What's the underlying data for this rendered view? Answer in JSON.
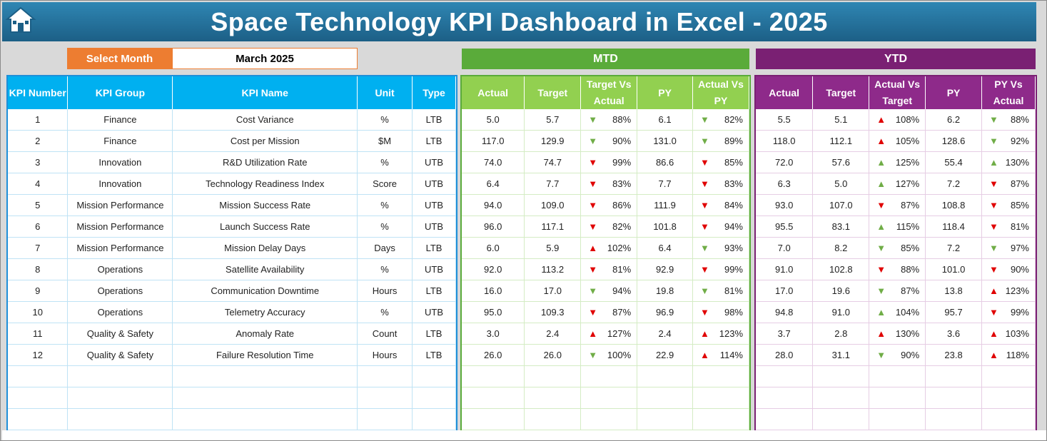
{
  "title": "Space Technology KPI Dashboard in Excel - 2025",
  "selector": {
    "label": "Select Month",
    "value": "March 2025"
  },
  "bands": {
    "mtd": "MTD",
    "ytd": "YTD"
  },
  "left_headers": [
    "KPI Number",
    "KPI Group",
    "KPI Name",
    "Unit",
    "Type"
  ],
  "mtd_headers": [
    "Actual",
    "Target",
    "Target Vs Actual",
    "PY",
    "Actual Vs PY"
  ],
  "ytd_headers": [
    "Actual",
    "Target",
    "Actual Vs Target",
    "PY",
    "PY Vs Actual"
  ],
  "colors": {
    "title_bg": "#1c5f86",
    "select_label": "#ed7d31",
    "mtd": "#92d050",
    "ytd": "#8e2a8a",
    "kpi_header": "#00b0f0",
    "arrow_red": "#e00000",
    "arrow_green": "#70ad47"
  },
  "rows": [
    {
      "num": "1",
      "group": "Finance",
      "name": "Cost Variance",
      "unit": "%",
      "type": "LTB",
      "mtd": {
        "actual": "5.0",
        "target": "5.7",
        "tva": "88%",
        "tva_dir": "down",
        "py": "6.1",
        "avp": "82%",
        "avp_dir": "down"
      },
      "ytd": {
        "actual": "5.5",
        "target": "5.1",
        "avt": "108%",
        "avt_dir": "up-red",
        "py": "6.2",
        "pva": "88%",
        "pva_dir": "down"
      }
    },
    {
      "num": "2",
      "group": "Finance",
      "name": "Cost per Mission",
      "unit": "$M",
      "type": "LTB",
      "mtd": {
        "actual": "117.0",
        "target": "129.9",
        "tva": "90%",
        "tva_dir": "down",
        "py": "131.0",
        "avp": "89%",
        "avp_dir": "down"
      },
      "ytd": {
        "actual": "118.0",
        "target": "112.1",
        "avt": "105%",
        "avt_dir": "up-red",
        "py": "128.6",
        "pva": "92%",
        "pva_dir": "down"
      }
    },
    {
      "num": "3",
      "group": "Innovation",
      "name": "R&D Utilization Rate",
      "unit": "%",
      "type": "UTB",
      "mtd": {
        "actual": "74.0",
        "target": "74.7",
        "tva": "99%",
        "tva_dir": "down-red",
        "py": "86.6",
        "avp": "85%",
        "avp_dir": "down-red"
      },
      "ytd": {
        "actual": "72.0",
        "target": "57.6",
        "avt": "125%",
        "avt_dir": "up-green",
        "py": "55.4",
        "pva": "130%",
        "pva_dir": "up-green"
      }
    },
    {
      "num": "4",
      "group": "Innovation",
      "name": "Technology Readiness Index",
      "unit": "Score",
      "type": "UTB",
      "mtd": {
        "actual": "6.4",
        "target": "7.7",
        "tva": "83%",
        "tva_dir": "down-red",
        "py": "7.7",
        "avp": "83%",
        "avp_dir": "down-red"
      },
      "ytd": {
        "actual": "6.3",
        "target": "5.0",
        "avt": "127%",
        "avt_dir": "up-green",
        "py": "7.2",
        "pva": "87%",
        "pva_dir": "down-red"
      }
    },
    {
      "num": "5",
      "group": "Mission Performance",
      "name": "Mission Success Rate",
      "unit": "%",
      "type": "UTB",
      "mtd": {
        "actual": "94.0",
        "target": "109.0",
        "tva": "86%",
        "tva_dir": "down-red",
        "py": "111.9",
        "avp": "84%",
        "avp_dir": "down-red"
      },
      "ytd": {
        "actual": "93.0",
        "target": "107.0",
        "avt": "87%",
        "avt_dir": "down-red",
        "py": "108.8",
        "pva": "85%",
        "pva_dir": "down-red"
      }
    },
    {
      "num": "6",
      "group": "Mission Performance",
      "name": "Launch Success Rate",
      "unit": "%",
      "type": "UTB",
      "mtd": {
        "actual": "96.0",
        "target": "117.1",
        "tva": "82%",
        "tva_dir": "down-red",
        "py": "101.8",
        "avp": "94%",
        "avp_dir": "down-red"
      },
      "ytd": {
        "actual": "95.5",
        "target": "83.1",
        "avt": "115%",
        "avt_dir": "up-green",
        "py": "118.4",
        "pva": "81%",
        "pva_dir": "down-red"
      }
    },
    {
      "num": "7",
      "group": "Mission Performance",
      "name": "Mission Delay Days",
      "unit": "Days",
      "type": "LTB",
      "mtd": {
        "actual": "6.0",
        "target": "5.9",
        "tva": "102%",
        "tva_dir": "up-red",
        "py": "6.4",
        "avp": "93%",
        "avp_dir": "down"
      },
      "ytd": {
        "actual": "7.0",
        "target": "8.2",
        "avt": "85%",
        "avt_dir": "down",
        "py": "7.2",
        "pva": "97%",
        "pva_dir": "down"
      }
    },
    {
      "num": "8",
      "group": "Operations",
      "name": "Satellite Availability",
      "unit": "%",
      "type": "UTB",
      "mtd": {
        "actual": "92.0",
        "target": "113.2",
        "tva": "81%",
        "tva_dir": "down-red",
        "py": "92.9",
        "avp": "99%",
        "avp_dir": "down-red"
      },
      "ytd": {
        "actual": "91.0",
        "target": "102.8",
        "avt": "88%",
        "avt_dir": "down-red",
        "py": "101.0",
        "pva": "90%",
        "pva_dir": "down-red"
      }
    },
    {
      "num": "9",
      "group": "Operations",
      "name": "Communication Downtime",
      "unit": "Hours",
      "type": "LTB",
      "mtd": {
        "actual": "16.0",
        "target": "17.0",
        "tva": "94%",
        "tva_dir": "down",
        "py": "19.8",
        "avp": "81%",
        "avp_dir": "down"
      },
      "ytd": {
        "actual": "17.0",
        "target": "19.6",
        "avt": "87%",
        "avt_dir": "down",
        "py": "13.8",
        "pva": "123%",
        "pva_dir": "up-red"
      }
    },
    {
      "num": "10",
      "group": "Operations",
      "name": "Telemetry Accuracy",
      "unit": "%",
      "type": "UTB",
      "mtd": {
        "actual": "95.0",
        "target": "109.3",
        "tva": "87%",
        "tva_dir": "down-red",
        "py": "96.9",
        "avp": "98%",
        "avp_dir": "down-red"
      },
      "ytd": {
        "actual": "94.8",
        "target": "91.0",
        "avt": "104%",
        "avt_dir": "up-green",
        "py": "95.7",
        "pva": "99%",
        "pva_dir": "down-red"
      }
    },
    {
      "num": "11",
      "group": "Quality & Safety",
      "name": "Anomaly Rate",
      "unit": "Count",
      "type": "LTB",
      "mtd": {
        "actual": "3.0",
        "target": "2.4",
        "tva": "127%",
        "tva_dir": "up-red",
        "py": "2.4",
        "avp": "123%",
        "avp_dir": "up-red"
      },
      "ytd": {
        "actual": "3.7",
        "target": "2.8",
        "avt": "130%",
        "avt_dir": "up-red",
        "py": "3.6",
        "pva": "103%",
        "pva_dir": "up-red"
      }
    },
    {
      "num": "12",
      "group": "Quality & Safety",
      "name": "Failure Resolution Time",
      "unit": "Hours",
      "type": "LTB",
      "mtd": {
        "actual": "26.0",
        "target": "26.0",
        "tva": "100%",
        "tva_dir": "down",
        "py": "22.9",
        "avp": "114%",
        "avp_dir": "up-red"
      },
      "ytd": {
        "actual": "28.0",
        "target": "31.1",
        "avt": "90%",
        "avt_dir": "down",
        "py": "23.8",
        "pva": "118%",
        "pva_dir": "up-red"
      }
    }
  ],
  "empty_rows": 3
}
